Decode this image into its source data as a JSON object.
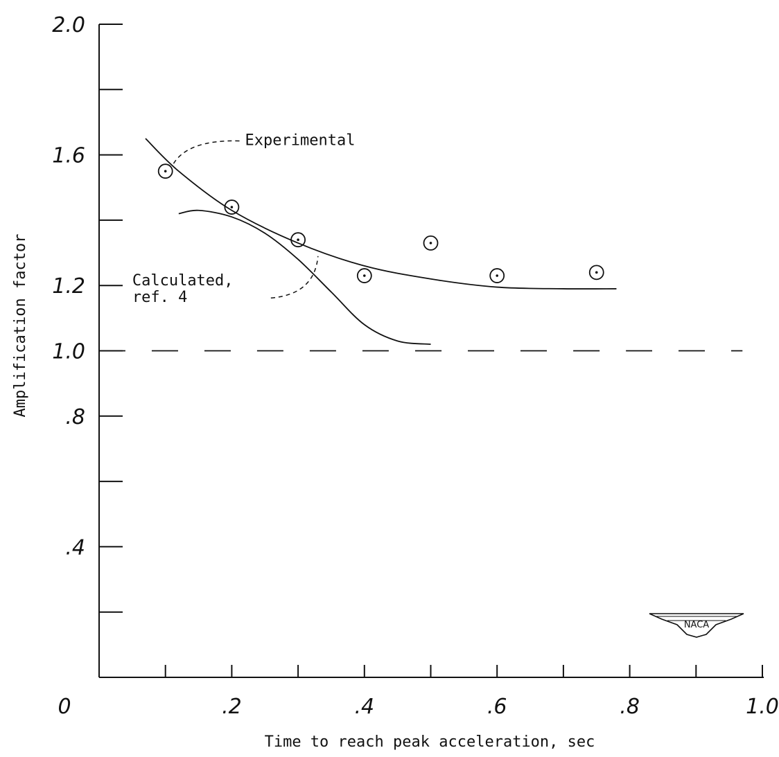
{
  "chart_data": {
    "type": "line",
    "title": "",
    "xlabel": "Time to reach peak acceleration, sec",
    "ylabel": "Amplification factor",
    "xlim": [
      0,
      1.0
    ],
    "ylim": [
      0,
      2.0
    ],
    "x_ticks": [
      0,
      0.1,
      0.2,
      0.3,
      0.4,
      0.5,
      0.6,
      0.7,
      0.8,
      0.9,
      1.0
    ],
    "x_tick_labels": [
      {
        "value": 0,
        "label": "0"
      },
      {
        "value": 0.2,
        "label": ".2"
      },
      {
        "value": 0.4,
        "label": ".4"
      },
      {
        "value": 0.6,
        "label": ".6"
      },
      {
        "value": 0.8,
        "label": ".8"
      },
      {
        "value": 1.0,
        "label": "1.0"
      }
    ],
    "y_ticks": [
      0.2,
      0.4,
      0.6,
      0.8,
      1.0,
      1.2,
      1.4,
      1.6,
      1.8,
      2.0
    ],
    "y_tick_labels": [
      {
        "value": 0.4,
        "label": ".4"
      },
      {
        "value": 0.8,
        "label": ".8"
      },
      {
        "value": 1.0,
        "label": "1.0"
      },
      {
        "value": 1.2,
        "label": "1.2"
      },
      {
        "value": 1.6,
        "label": "1.6"
      },
      {
        "value": 2.0,
        "label": "2.0"
      }
    ],
    "grid": false,
    "series": [
      {
        "name": "Experimental",
        "style": "points",
        "marker": "circle-dot",
        "x": [
          0.1,
          0.2,
          0.3,
          0.4,
          0.5,
          0.6,
          0.75
        ],
        "y": [
          1.55,
          1.44,
          1.34,
          1.23,
          1.33,
          1.23,
          1.24
        ]
      },
      {
        "name": "",
        "style": "solid-curve",
        "x": [
          0.07,
          0.12,
          0.2,
          0.3,
          0.4,
          0.5,
          0.6,
          0.7,
          0.78
        ],
        "y": [
          1.65,
          1.55,
          1.43,
          1.33,
          1.26,
          1.22,
          1.195,
          1.19,
          1.19
        ]
      },
      {
        "name": "Calculated, ref. 4",
        "style": "solid-curve",
        "x": [
          0.12,
          0.15,
          0.2,
          0.25,
          0.3,
          0.35,
          0.4,
          0.45,
          0.5
        ],
        "y": [
          1.42,
          1.43,
          1.41,
          1.36,
          1.28,
          1.18,
          1.08,
          1.03,
          1.02
        ]
      },
      {
        "name": "",
        "style": "dashed-reference",
        "x": [
          0,
          0.97
        ],
        "y": [
          1.0,
          1.0
        ]
      }
    ],
    "annotations": [
      {
        "text": "Experimental",
        "x": 0.22,
        "y": 1.63
      },
      {
        "text": "Calculated,",
        "x": 0.05,
        "y": 1.2
      },
      {
        "text": "ref. 4",
        "x": 0.05,
        "y": 1.15
      }
    ],
    "colors": {
      "ink": "#111111",
      "background": "#ffffff"
    },
    "logo": {
      "text": "NACA"
    }
  }
}
